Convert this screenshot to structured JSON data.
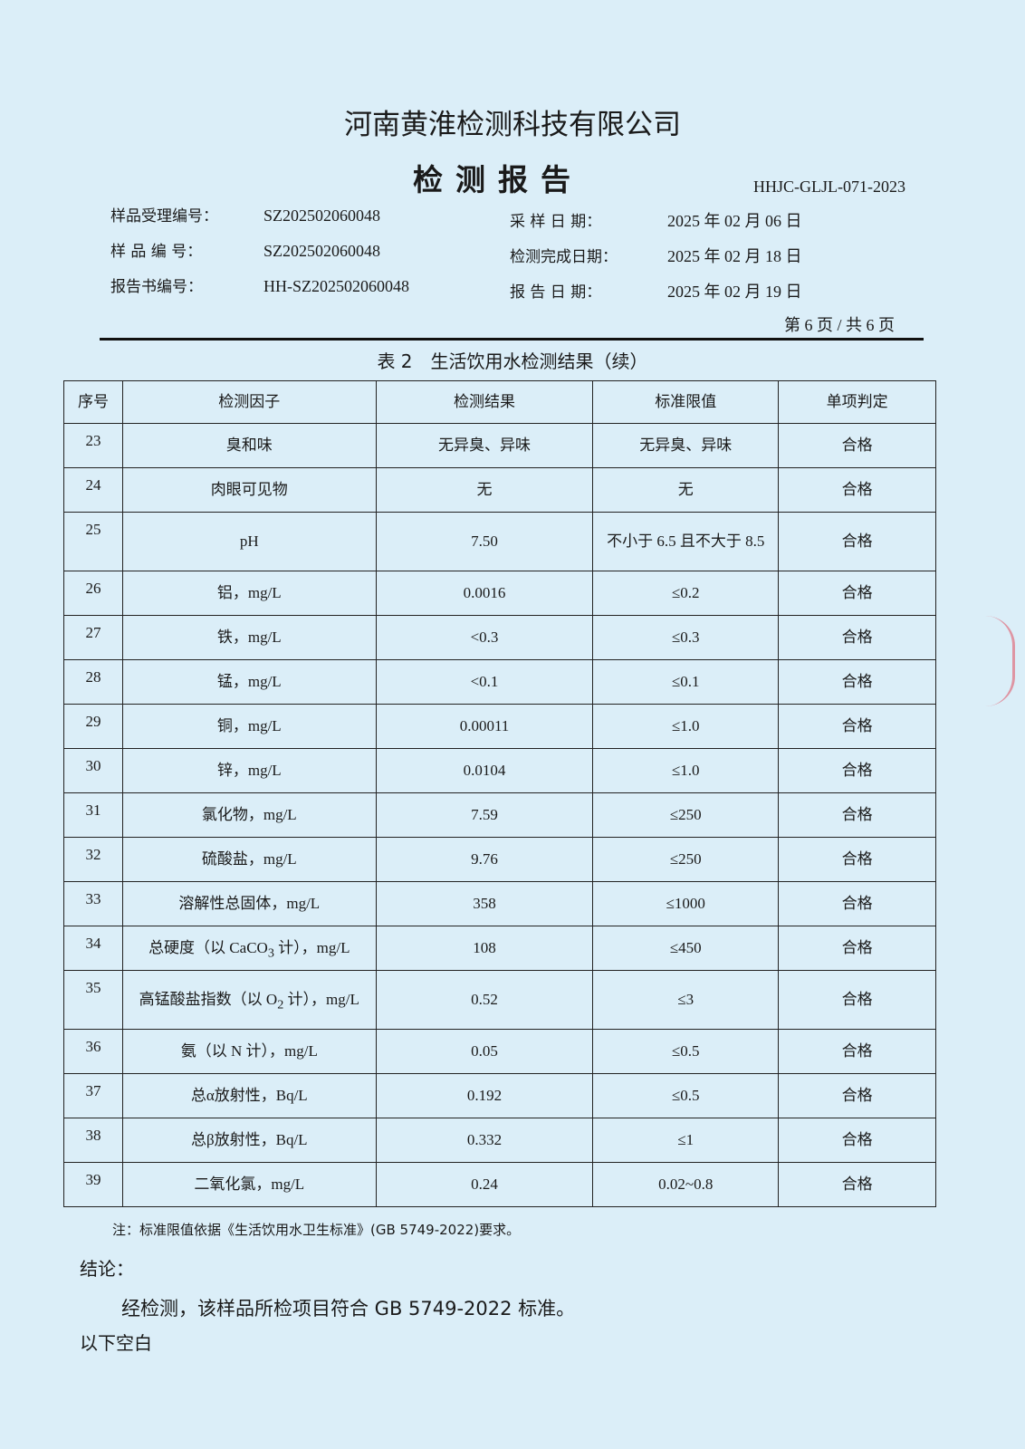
{
  "header": {
    "company": "河南黄淮检测科技有限公司",
    "title": "检测报告",
    "doc_code": "HHJC-GLJL-071-2023",
    "fields": [
      {
        "label": "样品受理编号：",
        "value": "SZ202502060048"
      },
      {
        "label": "样 品 编 号：",
        "value": "SZ202502060048"
      },
      {
        "label": "报告书编号：",
        "value": "HH-SZ202502060048"
      },
      {
        "label": "采 样 日 期：",
        "value": "2025 年 02 月 06 日"
      },
      {
        "label": "检测完成日期：",
        "value": "2025 年 02 月 18 日"
      },
      {
        "label": "报 告 日 期：",
        "value": "2025 年 02 月 19 日"
      }
    ],
    "page": "第 6 页 / 共 6 页"
  },
  "table": {
    "caption": "表 2　生活饮用水检测结果（续）",
    "columns": [
      "序号",
      "检测因子",
      "检测结果",
      "标准限值",
      "单项判定"
    ],
    "rows": [
      {
        "no": "23",
        "factor": "臭和味",
        "result": "无异臭、异味",
        "limit": "无异臭、异味",
        "verdict": "合格"
      },
      {
        "no": "24",
        "factor": "肉眼可见物",
        "result": "无",
        "limit": "无",
        "verdict": "合格"
      },
      {
        "no": "25",
        "factor": "pH",
        "result": "7.50",
        "limit": "不小于 6.5 且不大于 8.5",
        "verdict": "合格",
        "tall": true
      },
      {
        "no": "26",
        "factor": "铝，mg/L",
        "result": "0.0016",
        "limit": "≤0.2",
        "verdict": "合格"
      },
      {
        "no": "27",
        "factor": "铁，mg/L",
        "result": "<0.3",
        "limit": "≤0.3",
        "verdict": "合格"
      },
      {
        "no": "28",
        "factor": "锰，mg/L",
        "result": "<0.1",
        "limit": "≤0.1",
        "verdict": "合格"
      },
      {
        "no": "29",
        "factor": "铜，mg/L",
        "result": "0.00011",
        "limit": "≤1.0",
        "verdict": "合格"
      },
      {
        "no": "30",
        "factor": "锌，mg/L",
        "result": "0.0104",
        "limit": "≤1.0",
        "verdict": "合格"
      },
      {
        "no": "31",
        "factor": "氯化物，mg/L",
        "result": "7.59",
        "limit": "≤250",
        "verdict": "合格"
      },
      {
        "no": "32",
        "factor": "硫酸盐，mg/L",
        "result": "9.76",
        "limit": "≤250",
        "verdict": "合格"
      },
      {
        "no": "33",
        "factor": "溶解性总固体，mg/L",
        "result": "358",
        "limit": "≤1000",
        "verdict": "合格"
      },
      {
        "no": "34",
        "factor": "总硬度（以 CaCO",
        "factor_sub": "3",
        "factor_post": " 计），mg/L",
        "result": "108",
        "limit": "≤450",
        "verdict": "合格"
      },
      {
        "no": "35",
        "factor": "高锰酸盐指数（以 O",
        "factor_sub": "2",
        "factor_post": " 计），mg/L",
        "result": "0.52",
        "limit": "≤3",
        "verdict": "合格",
        "tall": true
      },
      {
        "no": "36",
        "factor": "氨（以 N 计），mg/L",
        "result": "0.05",
        "limit": "≤0.5",
        "verdict": "合格"
      },
      {
        "no": "37",
        "factor": "总α放射性，Bq/L",
        "result": "0.192",
        "limit": "≤0.5",
        "verdict": "合格"
      },
      {
        "no": "38",
        "factor": "总β放射性，Bq/L",
        "result": "0.332",
        "limit": "≤1",
        "verdict": "合格"
      },
      {
        "no": "39",
        "factor": "二氧化氯，mg/L",
        "result": "0.24",
        "limit": "0.02~0.8",
        "verdict": "合格"
      }
    ]
  },
  "note": "注：标准限值依据《生活饮用水卫生标准》(GB 5749-2022)要求。",
  "conclusion": {
    "label": "结论：",
    "text": "经检测，该样品所检项目符合 GB 5749-2022 标准。"
  },
  "blank": "以下空白",
  "colors": {
    "paper": "#dbeef8",
    "ink": "#1a1a1a",
    "stamp": "#e07080"
  }
}
